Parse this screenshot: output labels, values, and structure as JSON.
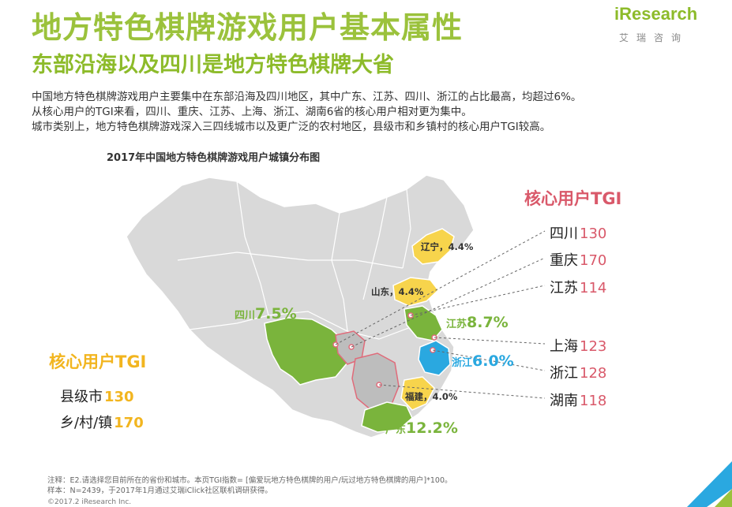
{
  "header": {
    "title": "地方特色棋牌游戏用户基本属性",
    "subtitle": "东部沿海以及四川是地方特色棋牌大省"
  },
  "logo": {
    "main": "iResearch",
    "sub": "艾瑞咨询"
  },
  "description": [
    "中国地方特色棋牌游戏用户主要集中在东部沿海及四川地区，其中广东、江苏、四川、浙江的占比最高，均超过6%。",
    "从核心用户的TGI来看，四川、重庆、江苏、上海、浙江、湖南6省的核心用户相对更为集中。",
    "城市类别上，地方特色棋牌游戏深入三四线城市以及更广泛的农村地区，县级市和乡镇村的核心用户TGI较高。"
  ],
  "map": {
    "title": "2017年中国地方特色棋牌游戏用户城镇分布图",
    "province_shares": [
      {
        "name": "辽宁",
        "value": "4.4%",
        "color": "#f7d44c"
      },
      {
        "name": "山东",
        "value": "4.4%",
        "color": "#f7d44c"
      },
      {
        "name": "福建",
        "value": "4.0%",
        "color": "#f7d44c"
      },
      {
        "name": "四川",
        "value": "7.5%",
        "color": "#7ab43c"
      },
      {
        "name": "江苏",
        "value": "8.7%",
        "color": "#7ab43c"
      },
      {
        "name": "浙江",
        "value": "6.0%",
        "color": "#2aa8e0"
      },
      {
        "name": "广东",
        "value": "12.2%",
        "color": "#7ab43c"
      }
    ],
    "colors": {
      "base": "#d9d9d9",
      "border": "#ffffff",
      "highlight_gray": "#bdbdbd",
      "highlight_border": "#e06b7a",
      "accent_yellow": "#f2b51f",
      "accent_red": "#d9596a"
    }
  },
  "tgi_city": {
    "title": "核心用户TGI",
    "rows": [
      {
        "label": "县级市",
        "value": "130"
      },
      {
        "label": "乡/村/镇",
        "value": "170"
      }
    ]
  },
  "tgi_province": {
    "title": "核心用户TGI",
    "rows": [
      {
        "label": "四川",
        "value": "130"
      },
      {
        "label": "重庆",
        "value": "170"
      },
      {
        "label": "江苏",
        "value": "114"
      },
      {
        "label": "上海",
        "value": "123"
      },
      {
        "label": "浙江",
        "value": "128"
      },
      {
        "label": "湖南",
        "value": "118"
      }
    ]
  },
  "footer": {
    "note": "注释：E2.请选择您目前所在的省份和城市。本页TGI指数= [偏爱玩地方特色棋牌的用户/玩过地方特色棋牌的用户]*100。",
    "sample": "样本：N=2439，于2017年1月通过艾瑞iClick社区联机调研获得。",
    "copyright": "©2017.2 iResearch Inc."
  }
}
